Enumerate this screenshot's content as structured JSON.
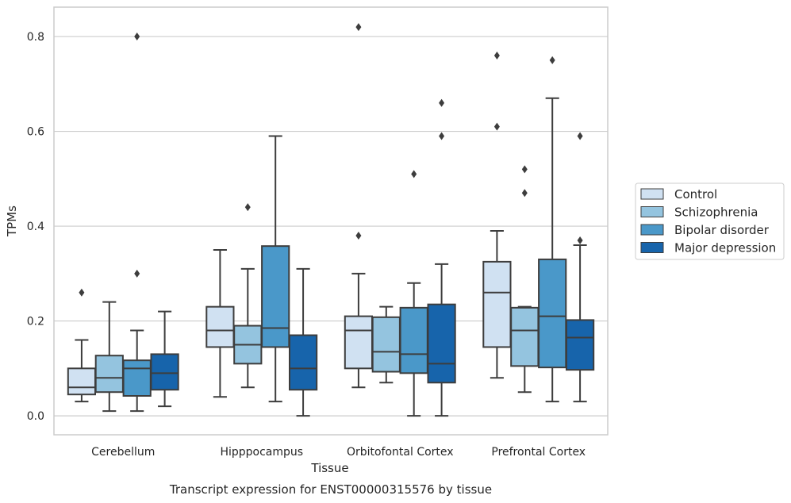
{
  "chart_data": {
    "type": "box",
    "title": "",
    "caption": "Transcript expression for ENST00000315576 by tissue",
    "xlabel": "Tissue",
    "ylabel": "TPMs",
    "ylim": [
      -0.04,
      0.862
    ],
    "yticks": [
      0.0,
      0.2,
      0.4,
      0.6,
      0.8
    ],
    "ytick_labels": [
      "0.0",
      "0.2",
      "0.4",
      "0.6",
      "0.8"
    ],
    "grid": "horizontal",
    "legend_position": "right",
    "categories": [
      "Cerebellum",
      "Hipppocampus",
      "Orbitofontal Cortex",
      "Prefrontal Cortex"
    ],
    "colors": [
      "#d0e1f2",
      "#94c4df",
      "#4a98c9",
      "#1764ab"
    ],
    "edge_color": "#3d3d3d",
    "series": [
      {
        "name": "Control",
        "boxes": [
          {
            "whislo": 0.03,
            "q1": 0.045,
            "med": 0.06,
            "q3": 0.1,
            "whishi": 0.16,
            "fliers": [
              0.26
            ]
          },
          {
            "whislo": 0.04,
            "q1": 0.145,
            "med": 0.18,
            "q3": 0.23,
            "whishi": 0.35,
            "fliers": []
          },
          {
            "whislo": 0.06,
            "q1": 0.1,
            "med": 0.18,
            "q3": 0.21,
            "whishi": 0.3,
            "fliers": [
              0.38,
              0.82
            ]
          },
          {
            "whislo": 0.08,
            "q1": 0.145,
            "med": 0.26,
            "q3": 0.325,
            "whishi": 0.39,
            "fliers": [
              0.61,
              0.76
            ]
          }
        ]
      },
      {
        "name": "Schizophrenia",
        "boxes": [
          {
            "whislo": 0.01,
            "q1": 0.05,
            "med": 0.08,
            "q3": 0.127,
            "whishi": 0.24,
            "fliers": []
          },
          {
            "whislo": 0.06,
            "q1": 0.11,
            "med": 0.15,
            "q3": 0.19,
            "whishi": 0.31,
            "fliers": [
              0.44
            ]
          },
          {
            "whislo": 0.07,
            "q1": 0.093,
            "med": 0.135,
            "q3": 0.208,
            "whishi": 0.23,
            "fliers": []
          },
          {
            "whislo": 0.05,
            "q1": 0.105,
            "med": 0.18,
            "q3": 0.228,
            "whishi": 0.23,
            "fliers": [
              0.47,
              0.52
            ]
          }
        ]
      },
      {
        "name": "Bipolar disorder",
        "boxes": [
          {
            "whislo": 0.01,
            "q1": 0.042,
            "med": 0.1,
            "q3": 0.117,
            "whishi": 0.18,
            "fliers": [
              0.3,
              0.8
            ]
          },
          {
            "whislo": 0.03,
            "q1": 0.145,
            "med": 0.185,
            "q3": 0.358,
            "whishi": 0.59,
            "fliers": []
          },
          {
            "whislo": 0.0,
            "q1": 0.09,
            "med": 0.13,
            "q3": 0.228,
            "whishi": 0.28,
            "fliers": [
              0.51
            ]
          },
          {
            "whislo": 0.03,
            "q1": 0.102,
            "med": 0.21,
            "q3": 0.33,
            "whishi": 0.67,
            "fliers": [
              0.75
            ]
          }
        ]
      },
      {
        "name": "Major depression",
        "boxes": [
          {
            "whislo": 0.02,
            "q1": 0.055,
            "med": 0.09,
            "q3": 0.13,
            "whishi": 0.22,
            "fliers": []
          },
          {
            "whislo": 0.0,
            "q1": 0.055,
            "med": 0.1,
            "q3": 0.17,
            "whishi": 0.31,
            "fliers": []
          },
          {
            "whislo": 0.0,
            "q1": 0.07,
            "med": 0.11,
            "q3": 0.235,
            "whishi": 0.32,
            "fliers": [
              0.59,
              0.66
            ]
          },
          {
            "whislo": 0.03,
            "q1": 0.097,
            "med": 0.165,
            "q3": 0.202,
            "whishi": 0.36,
            "fliers": [
              0.37,
              0.59
            ]
          }
        ]
      }
    ]
  }
}
